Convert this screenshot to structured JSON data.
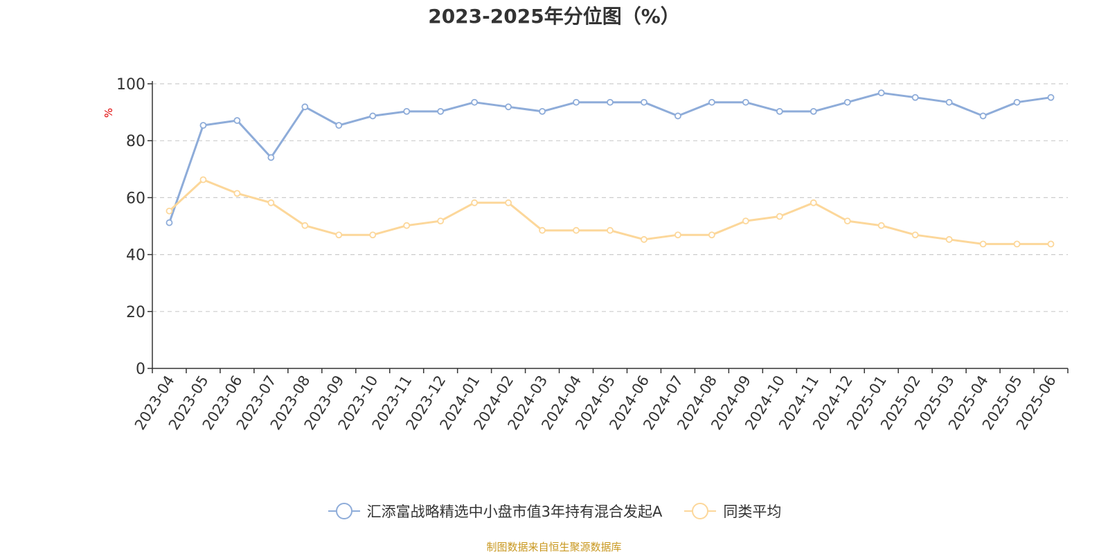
{
  "title": "2023-2025年分位图（%）",
  "footer": "制图数据来自恒生聚源数据库",
  "colors": {
    "fund": "#8eacd9",
    "peer": "#fcd79a",
    "unit": "#e00000",
    "footer": "#c8971e",
    "axis": "#333333",
    "grid": "#cccccc"
  },
  "chart_data": {
    "type": "line",
    "title": "2023-2025年分位图（%）",
    "ylabel": "%",
    "ylim": [
      0,
      100
    ],
    "yticks": [
      0,
      20,
      40,
      60,
      80,
      100
    ],
    "grid": "horizontal-dashed",
    "legend": "bottom-center",
    "categories": [
      "2023-04",
      "2023-05",
      "2023-06",
      "2023-07",
      "2023-08",
      "2023-09",
      "2023-10",
      "2023-11",
      "2023-12",
      "2024-01",
      "2024-02",
      "2024-03",
      "2024-04",
      "2024-05",
      "2024-06",
      "2024-07",
      "2024-08",
      "2024-09",
      "2024-10",
      "2024-11",
      "2024-12",
      "2025-01",
      "2025-02",
      "2025-03",
      "2025-04",
      "2025-05",
      "2025-06"
    ],
    "series": [
      {
        "name": "汇添富战略精选中小盘市值3年持有混合发起A",
        "color": "#8eacd9",
        "values": [
          51.2,
          85.4,
          87.1,
          74.1,
          91.9,
          85.4,
          88.7,
          90.3,
          90.3,
          93.5,
          91.9,
          90.3,
          93.5,
          93.5,
          93.5,
          88.7,
          93.5,
          93.5,
          90.3,
          90.3,
          93.5,
          96.8,
          95.2,
          93.5,
          88.7,
          93.5,
          95.2
        ]
      },
      {
        "name": "同类平均",
        "color": "#fcd79a",
        "values": [
          55.3,
          66.3,
          61.5,
          58.2,
          50.2,
          46.9,
          46.9,
          50.2,
          51.8,
          58.2,
          58.2,
          48.5,
          48.5,
          48.5,
          45.3,
          46.9,
          46.9,
          51.8,
          53.4,
          58.2,
          51.8,
          50.2,
          46.9,
          45.3,
          43.7,
          43.7,
          43.7
        ]
      }
    ]
  }
}
